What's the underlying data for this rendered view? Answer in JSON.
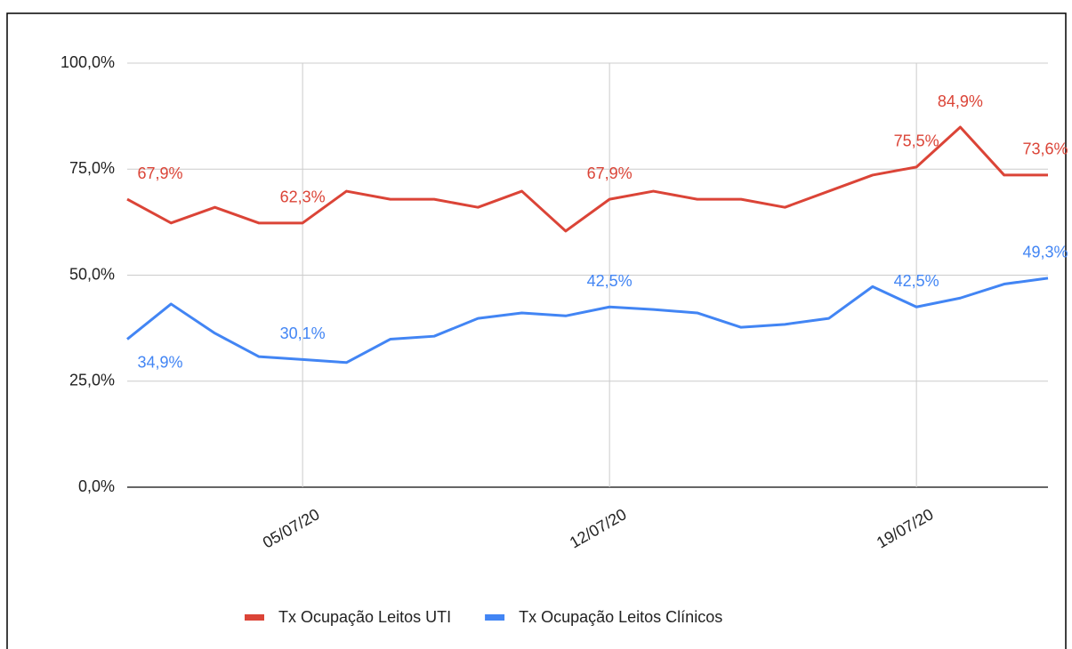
{
  "chart_data": {
    "type": "line",
    "categories": [
      null,
      null,
      null,
      null,
      "05/07/20",
      null,
      null,
      null,
      null,
      null,
      null,
      "12/07/20",
      null,
      null,
      null,
      null,
      null,
      null,
      "19/07/20",
      null,
      null,
      null
    ],
    "series": [
      {
        "name": "Tx Ocupação Leitos UTI",
        "color": "#db4437",
        "values": [
          67.9,
          62.3,
          66,
          62.3,
          62.3,
          69.8,
          67.9,
          67.9,
          66,
          69.8,
          60.4,
          67.9,
          69.8,
          67.9,
          67.9,
          66,
          69.8,
          73.6,
          75.5,
          84.9,
          73.6,
          73.6
        ],
        "value_labels": [
          "67,9%",
          null,
          null,
          null,
          "62,3%",
          null,
          null,
          null,
          null,
          null,
          null,
          "67,9%",
          null,
          null,
          null,
          null,
          null,
          null,
          "75,5%",
          "84,9%",
          null,
          "73,6%"
        ]
      },
      {
        "name": "Tx Ocupação Leitos Clínicos",
        "color": "#4285f4",
        "values": [
          34.9,
          43.2,
          36.3,
          30.8,
          30.1,
          29.4,
          34.9,
          35.6,
          39.8,
          41.1,
          40.4,
          42.5,
          41.9,
          41.1,
          37.7,
          38.4,
          39.8,
          47.3,
          42.5,
          44.6,
          47.9,
          49.3
        ],
        "value_labels": [
          "34,9%",
          null,
          null,
          null,
          "30,1%",
          null,
          null,
          null,
          null,
          null,
          null,
          "42,5%",
          null,
          null,
          null,
          null,
          null,
          null,
          "42,5%",
          null,
          null,
          "49,3%"
        ]
      }
    ],
    "ylim": [
      0,
      100
    ],
    "yticks": [
      {
        "value": 0,
        "label": "0,0%"
      },
      {
        "value": 25,
        "label": "25,0%"
      },
      {
        "value": 50,
        "label": "50,0%"
      },
      {
        "value": 75,
        "label": "75,0%"
      },
      {
        "value": 100,
        "label": "100,0%"
      }
    ],
    "grid": true,
    "legend": "bottom"
  }
}
